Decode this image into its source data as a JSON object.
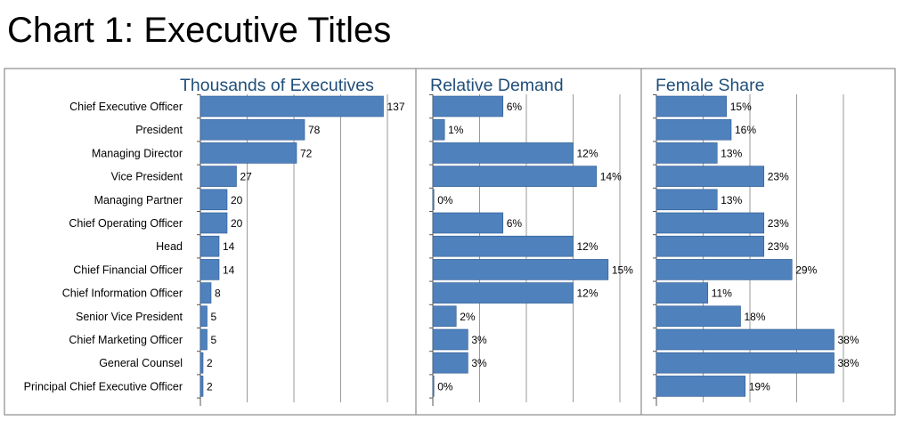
{
  "title": "Chart 1: Executive Titles",
  "chart_data": {
    "type": "bar",
    "orientation": "horizontal",
    "categories": [
      "Chief Executive Officer",
      "President",
      "Managing Director",
      "Vice President",
      "Managing Partner",
      "Chief Operating Officer",
      "Head",
      "Chief Financial Officer",
      "Chief Information Officer",
      "Senior Vice President",
      "Chief Marketing Officer",
      "General Counsel",
      "Principal Chief Executive Officer"
    ],
    "panels": [
      {
        "title": "Thousands of Executives",
        "values": [
          137,
          78,
          72,
          27,
          20,
          20,
          14,
          14,
          8,
          5,
          5,
          2,
          2
        ],
        "labels": [
          "137",
          "78",
          "72",
          "27",
          "20",
          "20",
          "14",
          "14",
          "8",
          "5",
          "5",
          "2",
          "2"
        ],
        "xlim": [
          0,
          140
        ],
        "grid_step": 35
      },
      {
        "title": "Relative Demand",
        "values": [
          6,
          1,
          12,
          14,
          0,
          6,
          12,
          15,
          12,
          2,
          3,
          3,
          0
        ],
        "labels": [
          "6%",
          "1%",
          "12%",
          "14%",
          "0%",
          "6%",
          "12%",
          "15%",
          "12%",
          "2%",
          "3%",
          "3%",
          "0%"
        ],
        "xlim": [
          0,
          16
        ],
        "grid_step": 4
      },
      {
        "title": "Female Share",
        "values": [
          15,
          16,
          13,
          23,
          13,
          23,
          23,
          29,
          11,
          18,
          38,
          38,
          19
        ],
        "labels": [
          "15%",
          "16%",
          "13%",
          "23%",
          "13%",
          "23%",
          "23%",
          "29%",
          "11%",
          "18%",
          "38%",
          "38%",
          "19%"
        ],
        "xlim": [
          0,
          40
        ],
        "grid_step": 10
      }
    ],
    "grid": true,
    "legend": "none",
    "colors": {
      "bar_fill": "#4f81bd",
      "bar_stroke": "#2e5a8e",
      "panel_title": "#1f4e79",
      "frame": "#8c8c8c",
      "grid": "#9a9a9a"
    }
  }
}
